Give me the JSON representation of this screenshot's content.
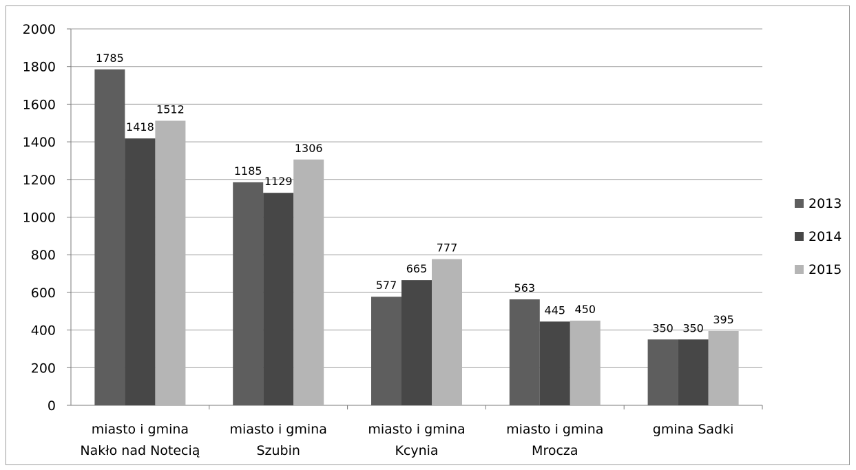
{
  "chart_data": {
    "type": "bar",
    "categories": [
      [
        "miasto i gmina",
        "Nakło nad Notecią"
      ],
      [
        "miasto i gmina",
        "Szubin"
      ],
      [
        "miasto i gmina",
        "Kcynia"
      ],
      [
        "miasto i gmina",
        "Mrocza"
      ],
      [
        "gmina Sadki"
      ]
    ],
    "series": [
      {
        "name": "2013",
        "color": "#5e5e5e",
        "values": [
          1785,
          1185,
          577,
          563,
          350
        ]
      },
      {
        "name": "2014",
        "color": "#474747",
        "values": [
          1418,
          1129,
          665,
          445,
          350
        ]
      },
      {
        "name": "2015",
        "color": "#b5b5b5",
        "values": [
          1512,
          1306,
          777,
          450,
          395
        ]
      }
    ],
    "y_ticks": [
      "0",
      "200",
      "400",
      "600",
      "800",
      "1000",
      "1200",
      "1400",
      "1600",
      "1800",
      "2000"
    ],
    "ylim": [
      0,
      2000
    ],
    "grid": true,
    "legend_position": "right",
    "title": "",
    "xlabel": "",
    "ylabel": ""
  }
}
